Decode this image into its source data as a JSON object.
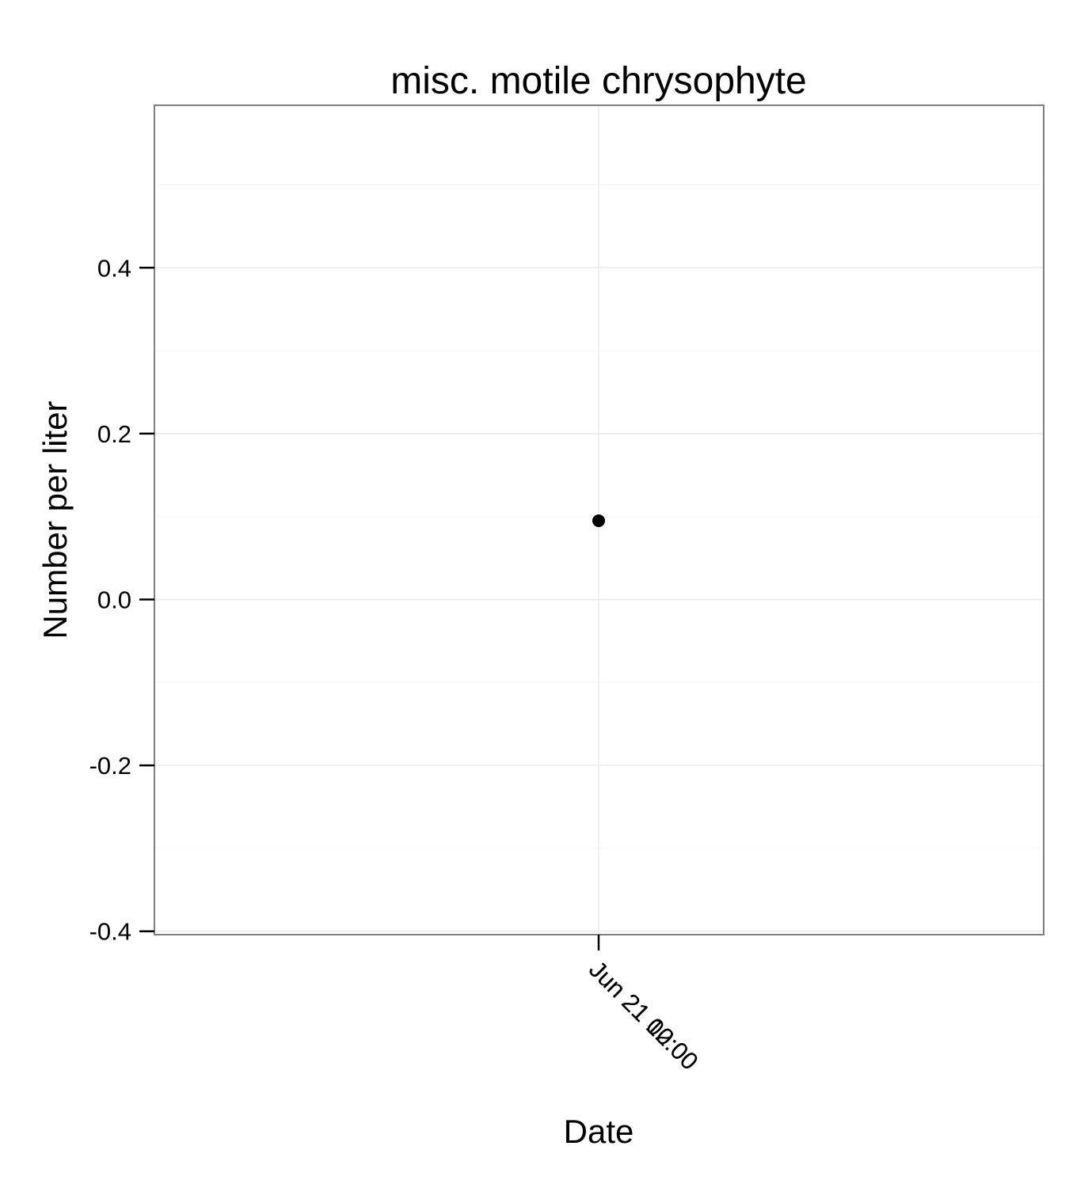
{
  "chart_data": {
    "type": "scatter",
    "title": "misc. motile chrysophyte",
    "xlabel": "Date",
    "ylabel": "Number per liter",
    "x_tick_labels": [
      "Jun 21 00:00",
      "Jun 21 12:00"
    ],
    "y_ticks": [
      -0.4,
      -0.2,
      0.0,
      0.2,
      0.4
    ],
    "y_tick_labels": [
      "-0.4",
      "-0.2",
      "0.0",
      "0.2",
      "0.4"
    ],
    "ylim": [
      -0.4,
      0.58
    ],
    "grid": true,
    "series": [
      {
        "points": [
          {
            "x": "Jun 21",
            "y": 0.095
          }
        ]
      }
    ],
    "colors": {
      "point": "#000000",
      "panel_border": "#7f7f7f",
      "grid_major": "#ebebeb",
      "grid_minor": "#f5f5f5"
    }
  }
}
